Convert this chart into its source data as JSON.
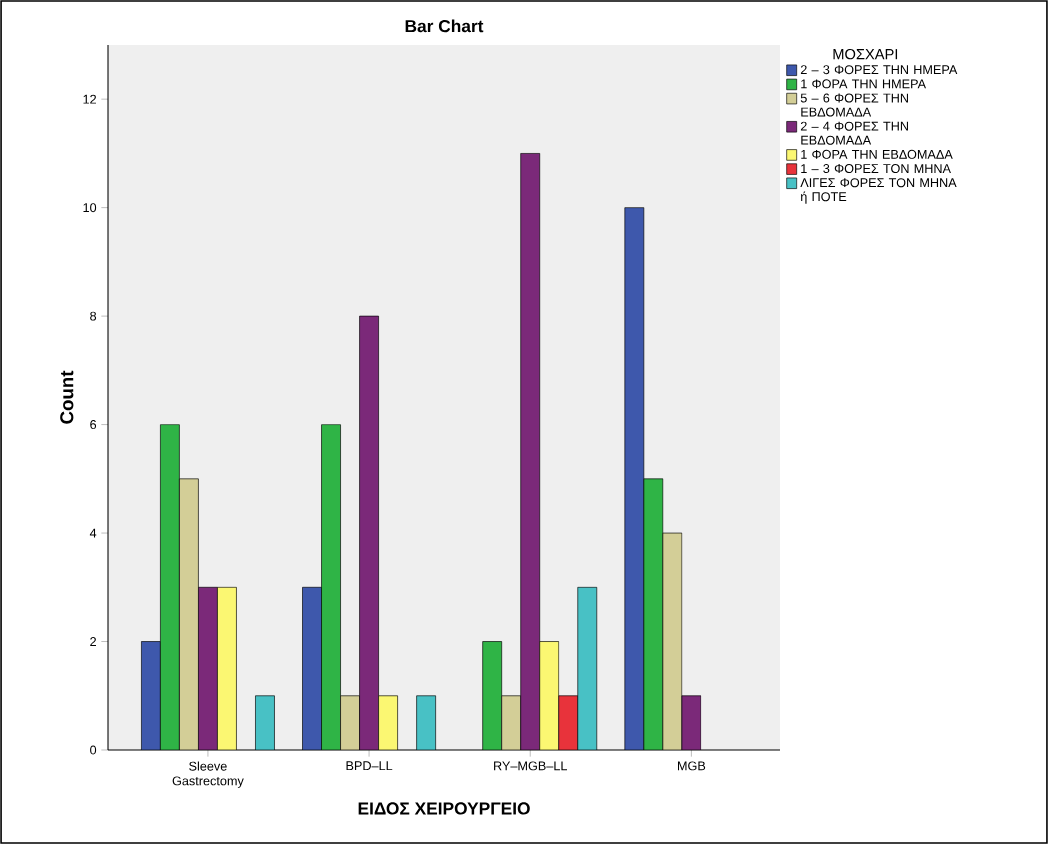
{
  "chart_data": {
    "type": "bar",
    "title": "Bar Chart",
    "xlabel": "ΕΙΔΟΣ ΧΕΙΡΟΥΡΓΕΙΟ",
    "ylabel": "Count",
    "legend_title": "ΜΟΣΧΑΡΙ",
    "categories": [
      "Sleeve Gastrectomy",
      "BPD–LL",
      "RY–MGB–LL",
      "MGB"
    ],
    "series": [
      {
        "name": "2 – 3 ΦΟΡΕΣ ΤΗΝ ΗΜΕΡΑ",
        "color": "#3e58ac",
        "values": [
          2,
          3,
          null,
          10
        ]
      },
      {
        "name": "1 ΦΟΡΑ ΤΗΝ ΗΜΕΡΑ",
        "color": "#2fb446",
        "values": [
          6,
          6,
          2,
          5
        ]
      },
      {
        "name": "5 – 6 ΦΟΡΕΣ ΤΗΝ ΕΒΔΟΜΑΔΑ",
        "color": "#d3ce97",
        "values": [
          5,
          1,
          1,
          4
        ]
      },
      {
        "name": "2 – 4 ΦΟΡΕΣ ΤΗΝ ΕΒΔΟΜΑΔΑ",
        "color": "#7b2979",
        "values": [
          3,
          8,
          11,
          1
        ]
      },
      {
        "name": "1 ΦΟΡΑ ΤΗΝ ΕΒΔΟΜΑΔΑ",
        "color": "#fbf772",
        "values": [
          3,
          1,
          2,
          null
        ]
      },
      {
        "name": "1 – 3 ΦΟΡΕΣ ΤΟΝ ΜΗΝΑ",
        "color": "#e8333b",
        "values": [
          null,
          null,
          1,
          null
        ]
      },
      {
        "name": "ΛΙΓΕΣ ΦΟΡΕΣ ΤΟΝ ΜΗΝΑ ή ΠΟΤΕ",
        "color": "#48c1c5",
        "values": [
          1,
          1,
          3,
          null
        ]
      }
    ],
    "ylim": [
      0,
      13
    ],
    "yticks": [
      0,
      2,
      4,
      6,
      8,
      10,
      12
    ],
    "legend": "top right"
  }
}
